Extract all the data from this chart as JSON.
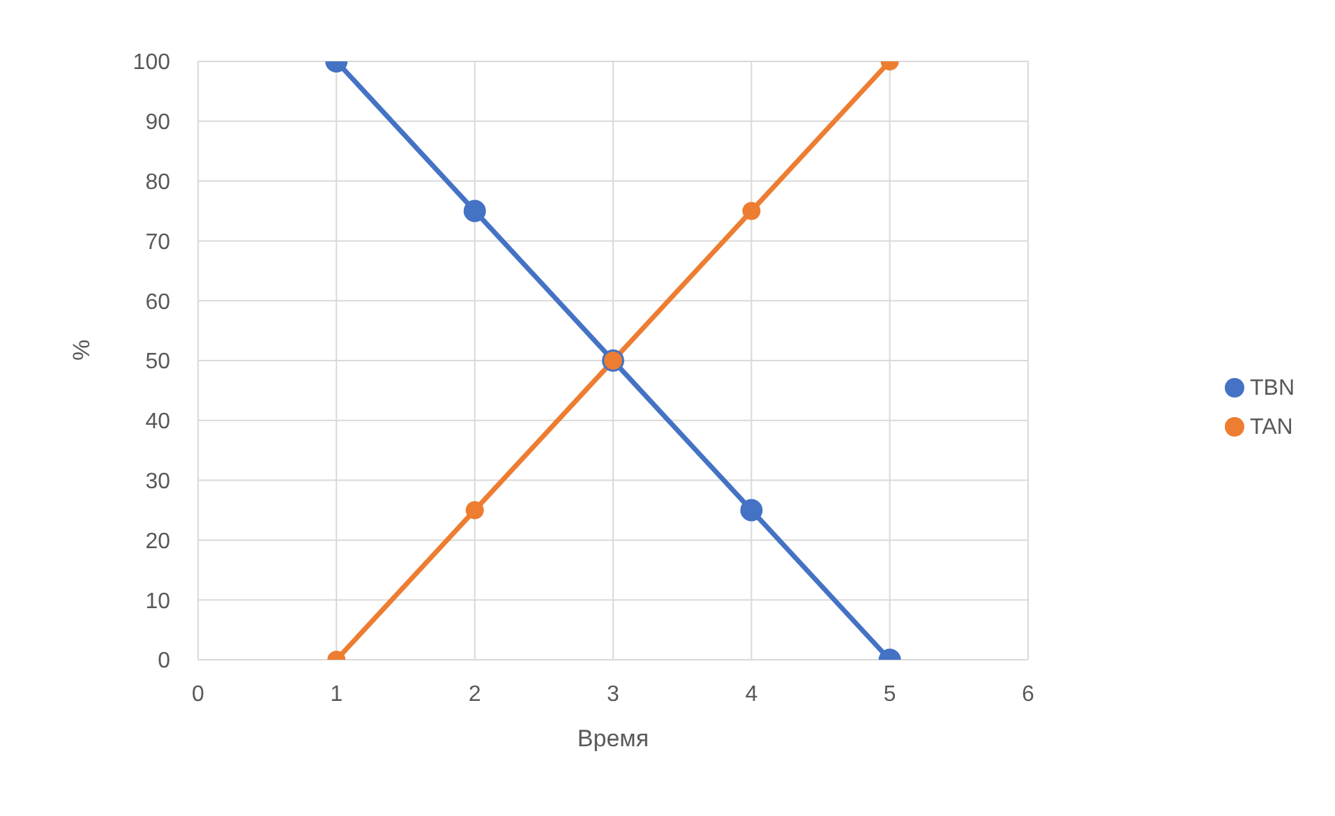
{
  "chart_data": {
    "type": "line",
    "xlabel": "Время",
    "ylabel": "%",
    "x": [
      1,
      2,
      3,
      4,
      5
    ],
    "series": [
      {
        "name": "TBN",
        "color": "#4472c4",
        "values": [
          100,
          75,
          50,
          25,
          0
        ]
      },
      {
        "name": "TAN",
        "color": "#ed7d31",
        "values": [
          0,
          25,
          50,
          75,
          100
        ]
      }
    ],
    "xlim": [
      0,
      6
    ],
    "xticks": [
      0,
      1,
      2,
      3,
      4,
      5,
      6
    ],
    "ylim": [
      0,
      100
    ],
    "yticks": [
      0,
      10,
      20,
      30,
      40,
      50,
      60,
      70,
      80,
      90,
      100
    ],
    "grid": true,
    "legend": "right",
    "marker": "circle",
    "line_style": "solid"
  }
}
